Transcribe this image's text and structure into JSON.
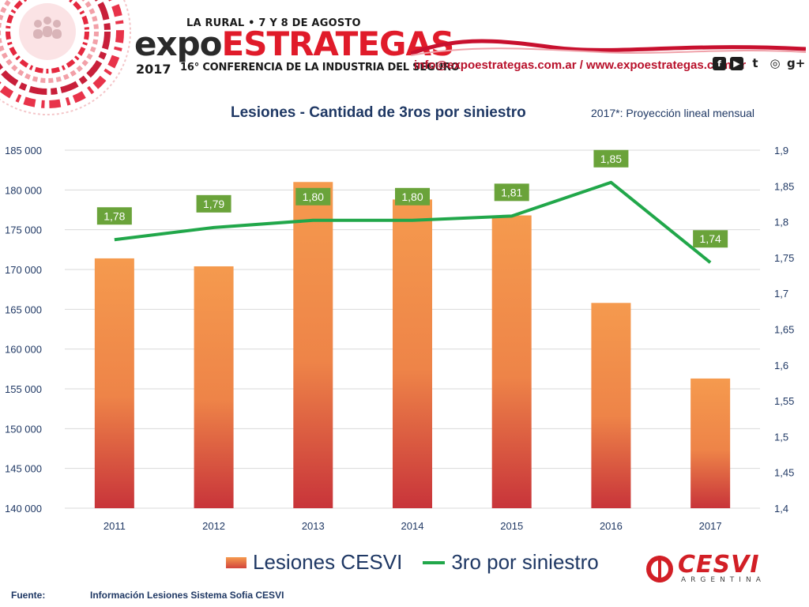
{
  "header": {
    "event_line": "LA RURAL • 7 Y 8 DE AGOSTO",
    "brand_part1": "expo",
    "brand_part2": "ESTRATEGAS",
    "year": "2017",
    "subtitle": "16° CONFERENCIA DE LA INDUSTRIA DEL SEGURO",
    "contact": "info@expoestrategas.com.ar / www.expoestrategas.com.ar",
    "social_icons": [
      "facebook-icon",
      "youtube-icon",
      "twitter-icon",
      "instagram-icon",
      "google-plus-icon"
    ],
    "social_glyphs": [
      "f",
      "▶",
      "t",
      "◎",
      "g+"
    ]
  },
  "colors": {
    "bar_top": "#f59a4e",
    "bar_bottom": "#c8343a",
    "line": "#21a74a",
    "label_box": "#6aa33a",
    "text_dark_blue": "#1f3864",
    "brand_red": "#e01b2a"
  },
  "chart_data": {
    "type": "bar",
    "title": "Lesiones - Cantidad de 3ros por siniestro",
    "note": "2017*: Proyección lineal mensual",
    "categories": [
      "2011",
      "2012",
      "2013",
      "2014",
      "2015",
      "2016",
      "2017"
    ],
    "series": [
      {
        "name": "Lesiones CESVI",
        "type": "bar",
        "axis": "left",
        "values": [
          171400,
          170400,
          181000,
          178800,
          176800,
          165800,
          156300
        ]
      },
      {
        "name": "3ro por siniestro",
        "type": "line",
        "axis": "right",
        "values": [
          1.775,
          1.792,
          1.802,
          1.802,
          1.808,
          1.855,
          1.743
        ],
        "labels": [
          "1,78",
          "1,79",
          "1,80",
          "1,80",
          "1,81",
          "1,85",
          "1,74"
        ]
      }
    ],
    "y_left": {
      "min": 140000,
      "max": 185000,
      "ticks": [
        "140 000",
        "145 000",
        "150 000",
        "155 000",
        "160 000",
        "165 000",
        "170 000",
        "175 000",
        "180 000",
        "185 000"
      ]
    },
    "y_right": {
      "min": 1.4,
      "max": 1.9,
      "ticks": [
        "1,4",
        "1,45",
        "1,5",
        "1,55",
        "1,6",
        "1,65",
        "1,7",
        "1,75",
        "1,8",
        "1,85",
        "1,9"
      ]
    },
    "grid": true,
    "legend_position": "bottom"
  },
  "source": {
    "label": "Fuente:",
    "text": "Información Lesiones  Sistema Sofia CESVI"
  },
  "logo": {
    "name": "CESVI",
    "sub": "ARGENTINA"
  }
}
